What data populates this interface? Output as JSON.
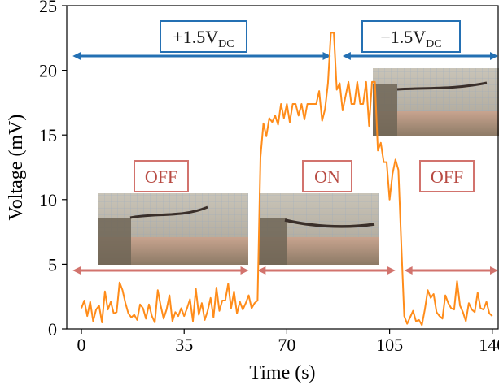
{
  "chart_data": {
    "type": "line",
    "xlabel": "Time (s)",
    "ylabel": "Voltage (mV)",
    "xlim": [
      -5,
      142
    ],
    "ylim": [
      0,
      25
    ],
    "xticks": [
      0,
      35,
      70,
      105,
      140
    ],
    "yticks": [
      0,
      5,
      10,
      15,
      20,
      25
    ],
    "grid": false,
    "line_color": "#ff8c1a",
    "series": [
      {
        "x": [
          0,
          1,
          2,
          3,
          4,
          5,
          6,
          7,
          8,
          9,
          10,
          11,
          12,
          13,
          14,
          15,
          16,
          17,
          18,
          19,
          20,
          21,
          22,
          23,
          24,
          25,
          26,
          27,
          28,
          29,
          30,
          31,
          32,
          33,
          34,
          35,
          36,
          37,
          38,
          39,
          40,
          41,
          42,
          43,
          44,
          45,
          46,
          47,
          48,
          49,
          50,
          51,
          52,
          53,
          54,
          55,
          56,
          57,
          58,
          59,
          60,
          61,
          62,
          63,
          64,
          65,
          66,
          67,
          68,
          69,
          70,
          71,
          72,
          73,
          74,
          75,
          76,
          77,
          78,
          79,
          80,
          81,
          82,
          83,
          84,
          85,
          86,
          87,
          88,
          89,
          90,
          91,
          92,
          93,
          94,
          95,
          96,
          97,
          98,
          99,
          100,
          101,
          102,
          103,
          104,
          105,
          106,
          107,
          108,
          109,
          110,
          111,
          112,
          113,
          114,
          115,
          116,
          117,
          118,
          119,
          120,
          121,
          122,
          123,
          124,
          125,
          126,
          127,
          128,
          129,
          130,
          131,
          132,
          133,
          134,
          135,
          136,
          137,
          138,
          139,
          140
        ],
        "y": [
          1.6,
          2.2,
          1.0,
          2.1,
          0.6,
          1.5,
          1.8,
          0.5,
          2.9,
          1.5,
          2.1,
          1.2,
          1.3,
          3.6,
          3.0,
          2.0,
          1.2,
          0.9,
          1.1,
          0.7,
          1.9,
          1.6,
          0.8,
          1.9,
          1.0,
          0.5,
          3.0,
          1.8,
          0.8,
          1.5,
          2.6,
          0.6,
          1.3,
          1.0,
          1.6,
          1.0,
          1.6,
          2.3,
          0.6,
          3.1,
          1.1,
          2.0,
          0.7,
          1.4,
          2.4,
          0.9,
          3.2,
          1.4,
          2.2,
          2.2,
          3.5,
          1.6,
          2.9,
          1.2,
          2.1,
          1.5,
          2.0,
          2.6,
          1.6,
          2.0,
          2.2,
          13.3,
          15.9,
          14.9,
          16.3,
          16.0,
          16.5,
          15.8,
          17.4,
          16.3,
          17.4,
          16.0,
          17.4,
          17.4,
          16.5,
          17.4,
          16.2,
          17.4,
          17.4,
          17.4,
          17.4,
          18.4,
          16.1,
          17.0,
          19.0,
          22.9,
          22.9,
          18.5,
          19.0,
          16.9,
          18.0,
          19.1,
          17.4,
          17.4,
          19.1,
          17.4,
          17.4,
          19.1,
          15.7,
          19.1,
          19.1,
          13.8,
          14.4,
          12.9,
          12.9,
          10.0,
          12.0,
          13.1,
          12.3,
          6.5,
          1.0,
          0.4,
          0.9,
          1.4,
          0.6,
          0.7,
          0.3,
          1.5,
          3.0,
          2.4,
          2.7,
          1.3,
          1.0,
          0.8,
          2.6,
          2.0,
          1.6,
          1.5,
          3.7,
          1.8,
          1.3,
          0.6,
          2.0,
          1.5,
          1.3,
          2.8,
          1.6,
          1.5,
          2.1,
          1.2,
          1.0
        ]
      }
    ],
    "annotations": [
      {
        "type": "box",
        "parts": [
          "+1.5V",
          "DC"
        ],
        "color": "#2470b3",
        "text_color": "#1a1a1a"
      },
      {
        "type": "box",
        "parts": [
          "−1.5V",
          "DC"
        ],
        "color": "#2470b3",
        "text_color": "#1a1a1a"
      },
      {
        "type": "box",
        "text": "OFF",
        "color": "#d2736d",
        "text_color": "#b84a42"
      },
      {
        "type": "box",
        "text": "ON",
        "color": "#d2736d",
        "text_color": "#b84a42"
      },
      {
        "type": "box",
        "text": "OFF",
        "color": "#d2736d",
        "text_color": "#b84a42"
      }
    ],
    "arrows": [
      {
        "color": "#2470b3",
        "x_range": [
          -3,
          85
        ]
      },
      {
        "color": "#2470b3",
        "x_range": [
          89,
          142
        ]
      },
      {
        "color": "#d2736d",
        "x_range": [
          -3,
          57
        ]
      },
      {
        "color": "#d2736d",
        "x_range": [
          60,
          107
        ]
      },
      {
        "color": "#d2736d",
        "x_range": [
          110,
          142
        ]
      }
    ]
  }
}
